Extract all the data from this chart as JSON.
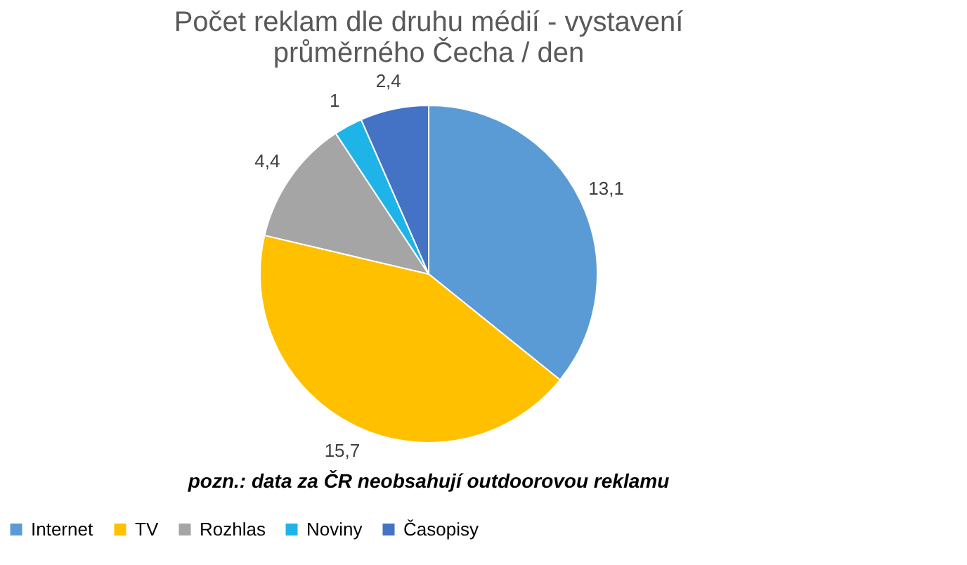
{
  "chart_data": {
    "type": "pie",
    "title": "Počet reklam dle druhu médií - vystavení průměrného Čecha / den",
    "categories": [
      "Internet",
      "TV",
      "Rozhlas",
      "Noviny",
      "Časopisy"
    ],
    "values": [
      13.1,
      15.7,
      4.4,
      1,
      2.4
    ],
    "value_labels": [
      "13,1",
      "15,7",
      "4,4",
      "1",
      "2,4"
    ],
    "colors": [
      "#5b9bd5",
      "#ffc000",
      "#a5a5a5",
      "#1fb4e8",
      "#4472c4"
    ],
    "legend": "bottom",
    "annotations": [
      "pozn.: data za ČR neobsahují outdoorovou reklamu"
    ]
  }
}
